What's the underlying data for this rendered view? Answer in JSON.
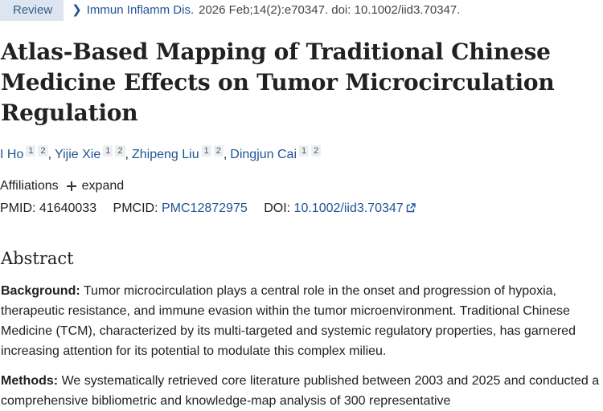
{
  "header": {
    "badge": "Review",
    "journal": "Immun Inflamm Dis.",
    "citation": "2026 Feb;14(2):e70347. doi: 10.1002/iid3.70347."
  },
  "title": "Atlas-Based Mapping of Traditional Chinese Medicine Effects on Tumor Microcirculation Regulation",
  "authors": [
    {
      "name": "I Ho",
      "sups": [
        "1",
        "2"
      ]
    },
    {
      "name": "Yijie Xie",
      "sups": [
        "1",
        "2"
      ]
    },
    {
      "name": "Zhipeng Liu",
      "sups": [
        "1",
        "2"
      ]
    },
    {
      "name": "Dingjun Cai",
      "sups": [
        "1",
        "2"
      ]
    }
  ],
  "affiliations": {
    "label": "Affiliations",
    "expand_label": "expand"
  },
  "identifiers": {
    "pmid_label": "PMID:",
    "pmid": "41640033",
    "pmcid_label": "PMCID:",
    "pmcid": "PMC12872975",
    "doi_label": "DOI:",
    "doi": "10.1002/iid3.70347"
  },
  "abstract": {
    "heading": "Abstract",
    "background_label": "Background:",
    "background_text": "Tumor microcirculation plays a central role in the onset and progression of hypoxia, therapeutic resistance, and immune evasion within the tumor microenvironment. Traditional Chinese Medicine (TCM), characterized by its multi-targeted and systemic regulatory properties, has garnered increasing attention for its potential to modulate this complex milieu.",
    "methods_label": "Methods:",
    "methods_text": "We systematically retrieved core literature published between 2003 and 2025 and conducted a comprehensive bibliometric and knowledge-map analysis of 300 representative"
  },
  "colors": {
    "link": "#205493",
    "badge_bg": "#dde5f0",
    "text": "#212121"
  }
}
